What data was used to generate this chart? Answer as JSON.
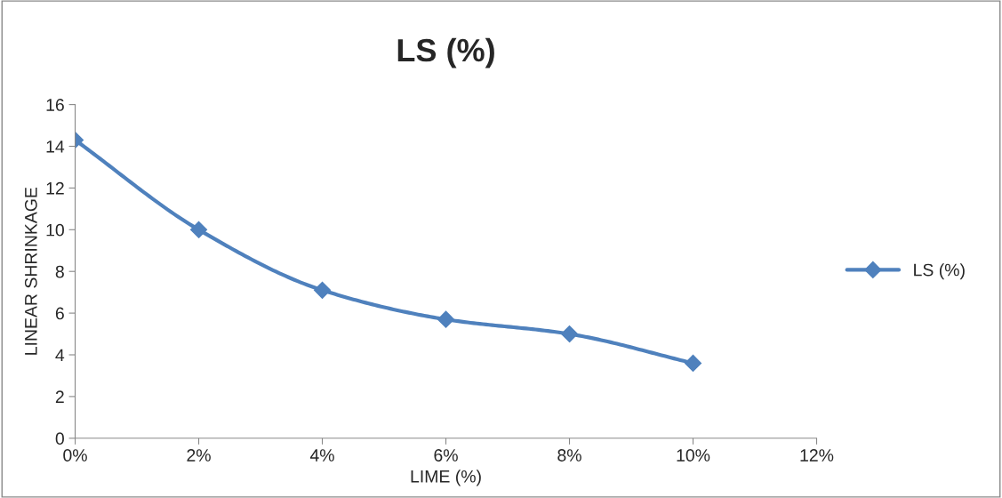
{
  "chart_data": {
    "type": "line",
    "title": "LS (%)",
    "xlabel": "LIME (%)",
    "ylabel": "LINEAR SHRINKAGE",
    "x": [
      0,
      2,
      4,
      6,
      8,
      10
    ],
    "series": [
      {
        "name": "LS (%)",
        "color": "#4f81bd",
        "values": [
          14.3,
          10.0,
          7.1,
          5.7,
          5.0,
          3.6
        ]
      }
    ],
    "xlim": [
      0,
      12
    ],
    "xticks": [
      {
        "value": 0,
        "label": "0%"
      },
      {
        "value": 2,
        "label": "2%"
      },
      {
        "value": 4,
        "label": "4%"
      },
      {
        "value": 6,
        "label": "6%"
      },
      {
        "value": 8,
        "label": "8%"
      },
      {
        "value": 10,
        "label": "10%"
      },
      {
        "value": 12,
        "label": "12%"
      }
    ],
    "ylim": [
      0,
      16
    ],
    "yticks": [
      0,
      2,
      4,
      6,
      8,
      10,
      12,
      14,
      16
    ],
    "marker": "diamond",
    "line_style": "solid",
    "grid": false,
    "legend": "right"
  }
}
